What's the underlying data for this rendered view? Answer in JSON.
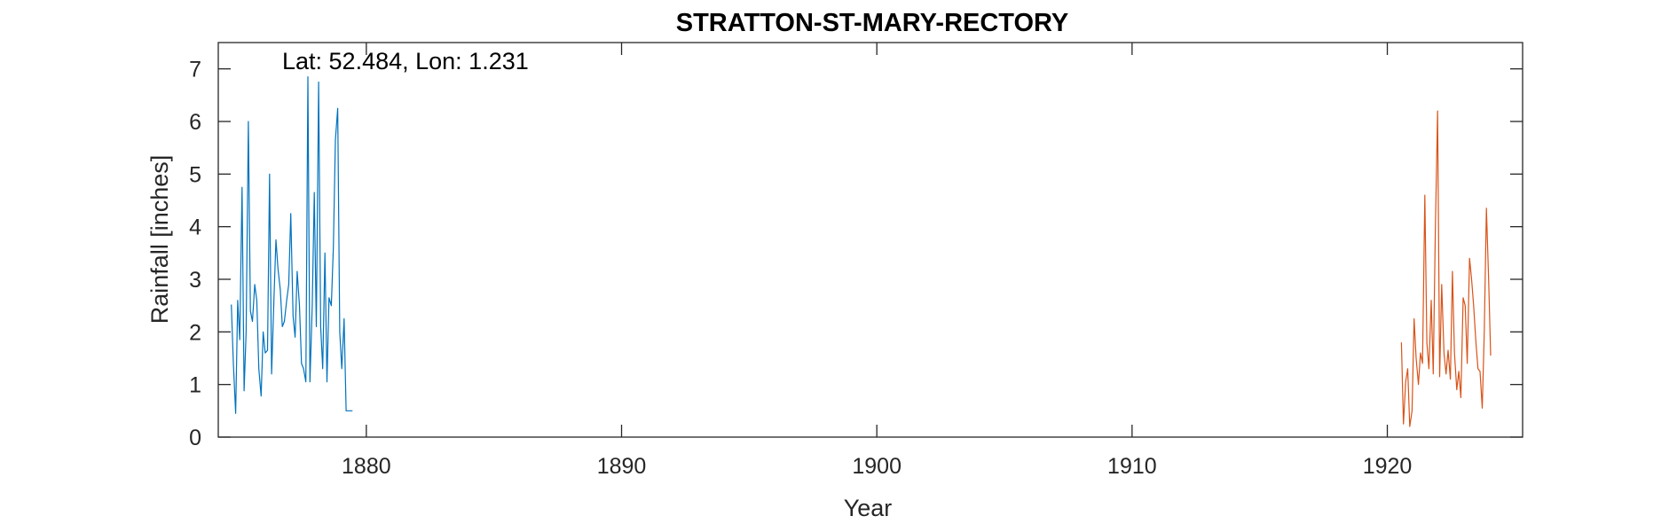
{
  "chart_data": {
    "type": "line",
    "title": "STRATTON-ST-MARY-RECTORY",
    "xlabel": "Year",
    "ylabel": "Rainfall [inches]",
    "annotation": "Lat: 52.484, Lon: 1.231",
    "xlim": [
      1874.2,
      1925.3
    ],
    "ylim": [
      0,
      7.5
    ],
    "xticks": [
      1880,
      1890,
      1900,
      1910,
      1920
    ],
    "yticks": [
      0,
      1,
      2,
      3,
      4,
      5,
      6,
      7
    ],
    "grid": false,
    "box": true,
    "series": [
      {
        "color": "#0072BD",
        "x": [
          1874.71,
          1874.79,
          1874.88,
          1874.96,
          1875.04,
          1875.13,
          1875.21,
          1875.29,
          1875.38,
          1875.46,
          1875.54,
          1875.63,
          1875.71,
          1875.79,
          1875.88,
          1875.96,
          1876.04,
          1876.13,
          1876.21,
          1876.29,
          1876.38,
          1876.46,
          1876.54,
          1876.63,
          1876.71,
          1876.79,
          1876.88,
          1876.96,
          1877.04,
          1877.13,
          1877.21,
          1877.29,
          1877.38,
          1877.46,
          1877.54,
          1877.63,
          1877.71,
          1877.79,
          1877.88,
          1877.96,
          1878.04,
          1878.13,
          1878.21,
          1878.29,
          1878.38,
          1878.46,
          1878.54,
          1878.63,
          1878.71,
          1878.79,
          1878.88,
          1878.96,
          1879.04,
          1879.13,
          1879.21,
          1879.29,
          1879.38,
          1879.46
        ],
        "values": [
          2.52,
          1.4,
          0.45,
          2.6,
          1.85,
          4.75,
          0.88,
          2.0,
          6.0,
          2.4,
          2.2,
          2.9,
          2.6,
          1.3,
          0.78,
          2.0,
          1.6,
          1.65,
          5.0,
          1.2,
          2.6,
          3.75,
          3.2,
          2.8,
          2.1,
          2.2,
          2.6,
          2.9,
          4.25,
          2.3,
          1.9,
          3.15,
          2.5,
          1.4,
          1.3,
          1.05,
          6.85,
          1.05,
          2.5,
          4.65,
          2.1,
          6.75,
          2.1,
          1.3,
          3.5,
          1.05,
          2.65,
          2.5,
          3.6,
          5.65,
          6.25,
          2.0,
          1.3,
          2.25,
          0.5,
          0.5,
          0.5,
          0.5
        ]
      },
      {
        "color": "#D95319",
        "x": [
          1920.55,
          1920.63,
          1920.72,
          1920.8,
          1920.88,
          1920.97,
          1921.05,
          1921.13,
          1921.22,
          1921.3,
          1921.38,
          1921.47,
          1921.55,
          1921.63,
          1921.72,
          1921.8,
          1921.88,
          1921.97,
          1922.05,
          1922.13,
          1922.22,
          1922.3,
          1922.38,
          1922.47,
          1922.55,
          1922.63,
          1922.72,
          1922.8,
          1922.88,
          1922.97,
          1923.05,
          1923.13,
          1923.22,
          1923.3,
          1923.38,
          1923.47,
          1923.55,
          1923.63,
          1923.72,
          1923.8,
          1923.88,
          1923.97,
          1924.05
        ],
        "values": [
          1.8,
          0.25,
          1.05,
          1.3,
          0.2,
          0.5,
          2.25,
          1.5,
          1.0,
          1.6,
          1.4,
          4.6,
          1.8,
          1.3,
          2.6,
          1.2,
          3.9,
          6.2,
          1.15,
          2.9,
          1.6,
          1.2,
          1.65,
          1.1,
          3.15,
          1.6,
          0.9,
          1.25,
          0.75,
          2.65,
          2.5,
          1.4,
          3.4,
          3.0,
          2.5,
          1.8,
          1.3,
          1.25,
          0.55,
          2.0,
          4.35,
          3.0,
          1.55
        ]
      }
    ]
  }
}
